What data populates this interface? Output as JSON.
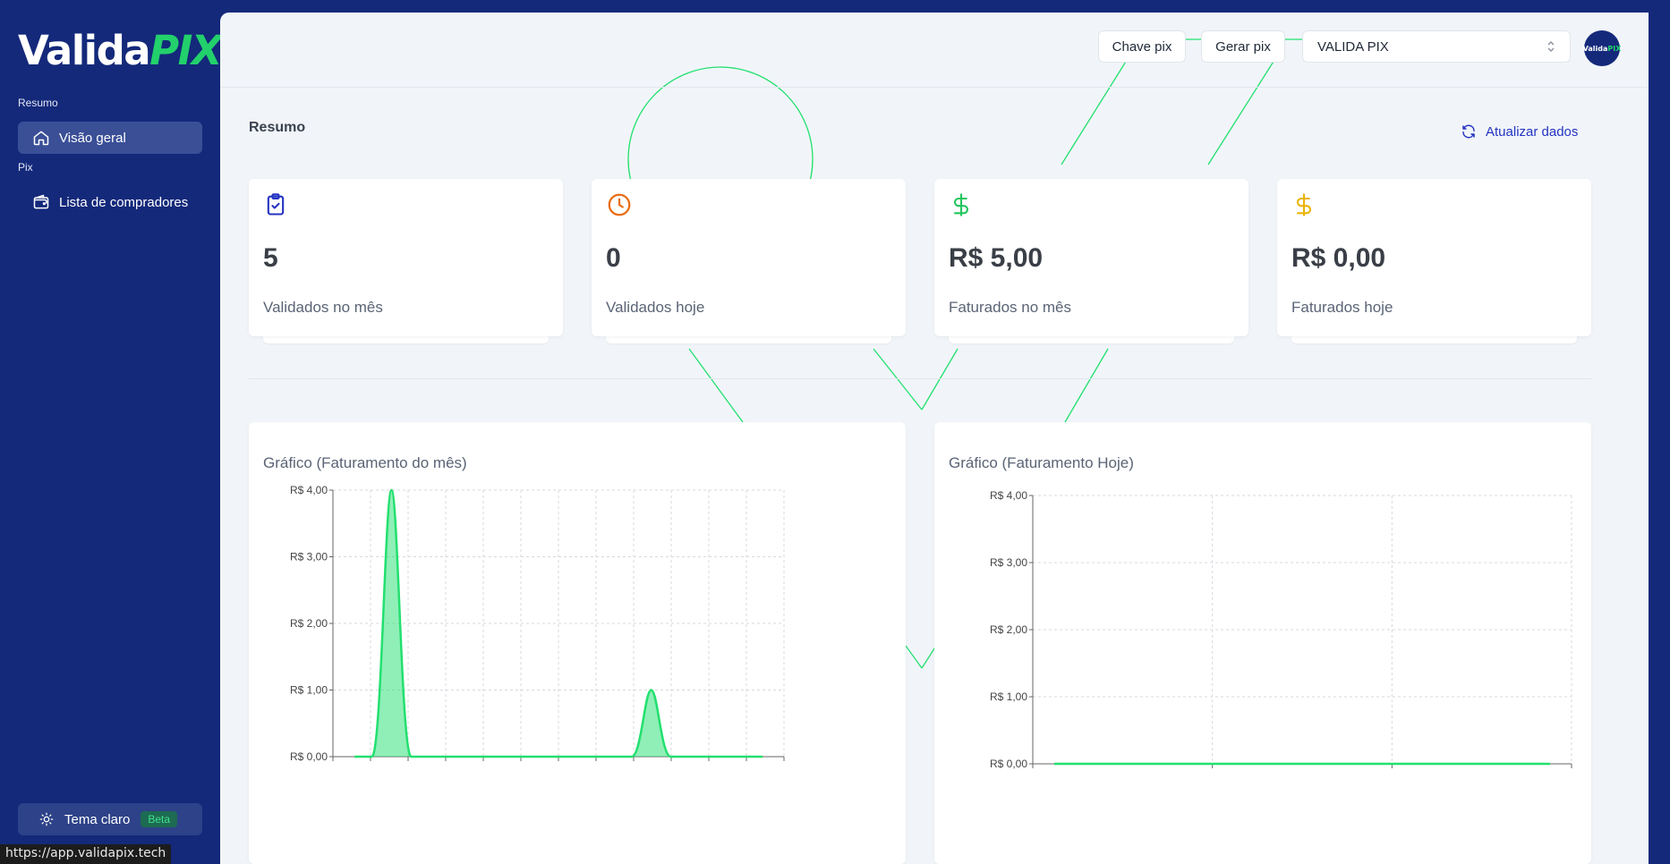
{
  "brand": {
    "logo_left": "Valida",
    "logo_right": "PIX",
    "accent": "#22d16b",
    "navy": "#14297a"
  },
  "sidebar": {
    "sections": [
      {
        "label": "Resumo",
        "items": [
          {
            "label": "Visão geral",
            "icon": "home-icon",
            "active": true
          }
        ]
      },
      {
        "label": "Pix",
        "items": [
          {
            "label": "Lista de compradores",
            "icon": "wallet-icon",
            "active": false
          }
        ]
      }
    ],
    "theme_button": {
      "label": "Tema claro",
      "badge": "Beta",
      "icon": "sun-icon"
    }
  },
  "header": {
    "buttons": [
      {
        "label": "Chave pix"
      },
      {
        "label": "Gerar pix"
      }
    ],
    "select_value": "VALIDA PIX",
    "avatar_text_left": "Valida",
    "avatar_text_right": "PIX"
  },
  "summary": {
    "title": "Resumo",
    "refresh_label": "Atualizar dados",
    "cards": [
      {
        "value": "5",
        "label": "Validados no mês",
        "icon": "clipboard-check-icon",
        "color": "#2433c2"
      },
      {
        "value": "0",
        "label": "Validados hoje",
        "icon": "clock-icon",
        "color": "#ea6c14"
      },
      {
        "value": "R$ 5,00",
        "label": "Faturados no mês",
        "icon": "dollar-icon",
        "color": "#22c55e"
      },
      {
        "value": "R$ 0,00",
        "label": "Faturados hoje",
        "icon": "dollar-icon",
        "color": "#eab308"
      }
    ]
  },
  "chart_data": [
    {
      "type": "area",
      "title": "Gráfico (Faturamento do mês)",
      "y_ticks": [
        "R$ 4,00",
        "R$ 3,00",
        "R$ 2,00",
        "R$ 1,00",
        "R$ 0,00"
      ],
      "ylim": [
        0,
        4
      ],
      "x": [
        1,
        2,
        3,
        4,
        5,
        6,
        7,
        8,
        9,
        10,
        11,
        12
      ],
      "values": [
        0,
        4,
        0,
        0,
        0,
        0,
        0,
        0,
        1,
        0,
        0,
        0
      ],
      "color": "#22e06f",
      "grid": true
    },
    {
      "type": "area",
      "title": "Gráfico (Faturamento Hoje)",
      "y_ticks": [
        "R$ 4,00",
        "R$ 3,00",
        "R$ 2,00",
        "R$ 1,00",
        "R$ 0,00"
      ],
      "ylim": [
        0,
        4
      ],
      "x": [
        1,
        2,
        3,
        4
      ],
      "values": [
        0,
        0,
        0,
        0
      ],
      "color": "#22e06f",
      "grid": true
    }
  ],
  "status_bar": {
    "url": "https://app.validapix.tech"
  }
}
